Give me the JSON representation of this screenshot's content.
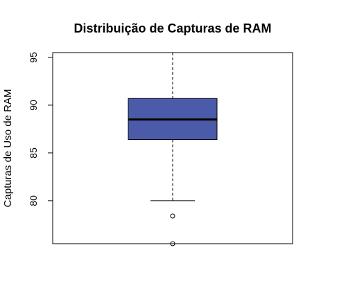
{
  "chart_data": {
    "type": "boxplot",
    "title": "Distribuição de Capturas de RAM",
    "xlabel": "",
    "ylabel": "Capturas de Uso de RAM",
    "ylim": [
      75.5,
      95.5
    ],
    "yticks": [
      80,
      85,
      90,
      95
    ],
    "ytick_labels": [
      "80",
      "85",
      "90",
      "95"
    ],
    "box": {
      "min": 80,
      "q1": 86.4,
      "median": 88.5,
      "q3": 90.7,
      "max": 95.6,
      "outliers": [
        78.4,
        75.5
      ]
    },
    "grid": false,
    "legend": "none",
    "colors": {
      "box_fill": "#4B5BAA",
      "box_stroke": "#000000",
      "median": "#000000"
    }
  }
}
